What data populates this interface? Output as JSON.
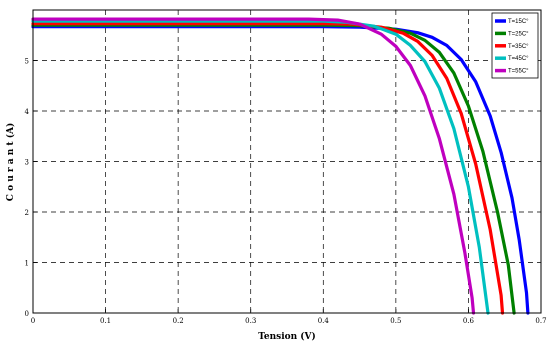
{
  "chart_data": {
    "type": "line",
    "title": "",
    "xlabel": "Tension (V)",
    "ylabel": "C o u r a n t  (A)",
    "xlim": [
      0,
      0.7
    ],
    "ylim": [
      0,
      6
    ],
    "xticks": [
      "0",
      "0.1",
      "0.2",
      "0.3",
      "0.4",
      "0.5",
      "0.6",
      "0.7"
    ],
    "yticks": [
      "0",
      "1",
      "2",
      "3",
      "4",
      "5"
    ],
    "grid": true,
    "legend_position": "top-right",
    "series": [
      {
        "name": "T=15C°",
        "color": "#0000ff",
        "points": [
          [
            0,
            5.67
          ],
          [
            0.4,
            5.67
          ],
          [
            0.45,
            5.66
          ],
          [
            0.5,
            5.62
          ],
          [
            0.53,
            5.55
          ],
          [
            0.55,
            5.46
          ],
          [
            0.57,
            5.3
          ],
          [
            0.59,
            5.02
          ],
          [
            0.61,
            4.58
          ],
          [
            0.63,
            3.9
          ],
          [
            0.645,
            3.18
          ],
          [
            0.66,
            2.28
          ],
          [
            0.67,
            1.45
          ],
          [
            0.68,
            0.4
          ],
          [
            0.682,
            0
          ]
        ]
      },
      {
        "name": "T=25C°",
        "color": "#008000",
        "points": [
          [
            0,
            5.7
          ],
          [
            0.4,
            5.7
          ],
          [
            0.45,
            5.69
          ],
          [
            0.49,
            5.64
          ],
          [
            0.52,
            5.54
          ],
          [
            0.54,
            5.4
          ],
          [
            0.56,
            5.16
          ],
          [
            0.58,
            4.75
          ],
          [
            0.6,
            4.1
          ],
          [
            0.62,
            3.2
          ],
          [
            0.64,
            2.0
          ],
          [
            0.655,
            0.95
          ],
          [
            0.663,
            0
          ]
        ]
      },
      {
        "name": "T=35C°",
        "color": "#ff0000",
        "points": [
          [
            0,
            5.73
          ],
          [
            0.4,
            5.73
          ],
          [
            0.44,
            5.72
          ],
          [
            0.48,
            5.66
          ],
          [
            0.51,
            5.54
          ],
          [
            0.53,
            5.38
          ],
          [
            0.55,
            5.1
          ],
          [
            0.57,
            4.65
          ],
          [
            0.59,
            3.95
          ],
          [
            0.61,
            2.95
          ],
          [
            0.63,
            1.65
          ],
          [
            0.645,
            0.35
          ],
          [
            0.647,
            0
          ]
        ]
      },
      {
        "name": "T=45C°",
        "color": "#00c0c0",
        "points": [
          [
            0,
            5.78
          ],
          [
            0.4,
            5.78
          ],
          [
            0.43,
            5.76
          ],
          [
            0.47,
            5.68
          ],
          [
            0.5,
            5.52
          ],
          [
            0.52,
            5.3
          ],
          [
            0.54,
            4.98
          ],
          [
            0.56,
            4.45
          ],
          [
            0.58,
            3.65
          ],
          [
            0.6,
            2.5
          ],
          [
            0.615,
            1.3
          ],
          [
            0.627,
            0
          ]
        ]
      },
      {
        "name": "T=55C°",
        "color": "#bf00bf",
        "points": [
          [
            0,
            5.82
          ],
          [
            0.38,
            5.82
          ],
          [
            0.42,
            5.8
          ],
          [
            0.45,
            5.72
          ],
          [
            0.48,
            5.52
          ],
          [
            0.5,
            5.28
          ],
          [
            0.52,
            4.9
          ],
          [
            0.54,
            4.3
          ],
          [
            0.56,
            3.45
          ],
          [
            0.58,
            2.35
          ],
          [
            0.595,
            1.2
          ],
          [
            0.605,
            0.3
          ],
          [
            0.607,
            0
          ]
        ]
      }
    ]
  }
}
